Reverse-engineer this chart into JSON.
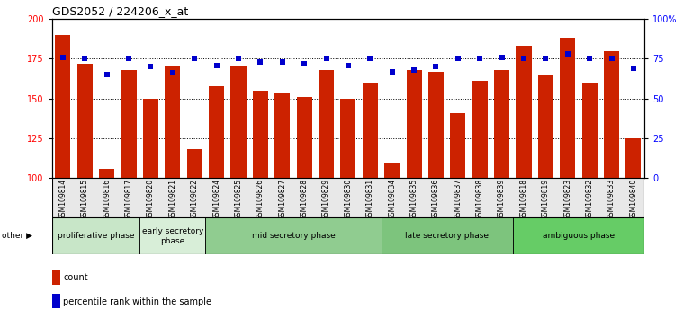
{
  "title": "GDS2052 / 224206_x_at",
  "samples": [
    "GSM109814",
    "GSM109815",
    "GSM109816",
    "GSM109817",
    "GSM109820",
    "GSM109821",
    "GSM109822",
    "GSM109824",
    "GSM109825",
    "GSM109826",
    "GSM109827",
    "GSM109828",
    "GSM109829",
    "GSM109830",
    "GSM109831",
    "GSM109834",
    "GSM109835",
    "GSM109836",
    "GSM109837",
    "GSM109838",
    "GSM109839",
    "GSM109818",
    "GSM109819",
    "GSM109823",
    "GSM109832",
    "GSM109833",
    "GSM109840"
  ],
  "counts": [
    190,
    172,
    106,
    168,
    150,
    170,
    118,
    158,
    170,
    155,
    153,
    151,
    168,
    150,
    160,
    109,
    168,
    167,
    141,
    161,
    168,
    183,
    165,
    188,
    160,
    180,
    125
  ],
  "percentiles": [
    76,
    75,
    65,
    75,
    70,
    66,
    75,
    71,
    75,
    73,
    73,
    72,
    75,
    71,
    75,
    67,
    68,
    70,
    75,
    75,
    76,
    75,
    75,
    78,
    75,
    75,
    69
  ],
  "phases": [
    {
      "label": "proliferative phase",
      "start": 0,
      "end": 4,
      "color": "#c8e6c8"
    },
    {
      "label": "early secretory\nphase",
      "start": 4,
      "end": 7,
      "color": "#d8eed8"
    },
    {
      "label": "mid secretory phase",
      "start": 7,
      "end": 15,
      "color": "#90cc90"
    },
    {
      "label": "late secretory phase",
      "start": 15,
      "end": 21,
      "color": "#7dc47d"
    },
    {
      "label": "ambiguous phase",
      "start": 21,
      "end": 27,
      "color": "#66cc66"
    }
  ],
  "bar_color": "#cc2200",
  "dot_color": "#0000cc",
  "ylim_left": [
    100,
    200
  ],
  "ylim_right": [
    0,
    100
  ],
  "yticks_left": [
    100,
    125,
    150,
    175,
    200
  ],
  "yticks_right": [
    0,
    25,
    50,
    75,
    100
  ],
  "ytick_labels_right": [
    "0",
    "25",
    "50",
    "75",
    "100%"
  ]
}
